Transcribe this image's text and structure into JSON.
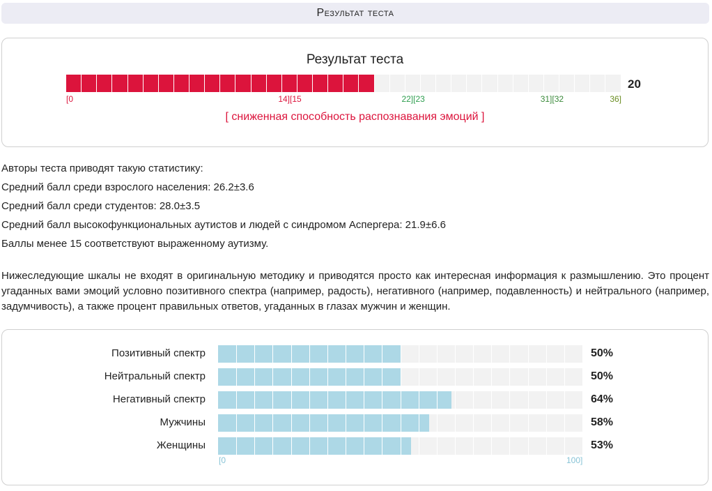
{
  "header": {
    "title": "Результат теста"
  },
  "result": {
    "title": "Результат теста",
    "score": 20,
    "max": 36,
    "score_label": "20",
    "total_segments": 36,
    "bar_color": "#dc143c",
    "ticks": [
      {
        "label": "[0",
        "value": 0,
        "color": "#dc143c"
      },
      {
        "label": "14][15",
        "value": 14.5,
        "color": "#dc143c"
      },
      {
        "label": "22][23",
        "value": 22.5,
        "color": "#2e9e4f"
      },
      {
        "label": "31][32",
        "value": 31.5,
        "color": "#3b8a3b"
      },
      {
        "label": "36]",
        "value": 36,
        "color": "#6b8e23"
      }
    ],
    "verdict": "[ сниженная способность распознавания эмоций ]"
  },
  "stats": {
    "lines": [
      "Авторы теста приводят такую статистику:",
      "Средний балл среди взрослого населения: 26.2±3.6",
      "Средний балл среди студентов: 28.0±3.5",
      "Средний балл высокофункциональных аутистов и людей с синдромом Аспергера: 21.9±6.6",
      "Баллы менее 15 соответствуют выраженному аутизму."
    ]
  },
  "info": {
    "text": "Нижеследующие шкалы не входят в оригинальную методику и приводятся просто как интересная информация к размышлению. Это процент угаданных вами эмоций условно позитивного спектра (например, радость), негативного (например, подавленность) и нейтрального (например, задумчивость), а также процент правильных ответов, угаданных в глазах мужчин и женщин."
  },
  "scales": {
    "bar_color": "#add8e6",
    "total_segments": 20,
    "axis_min": "[0",
    "axis_max": "100]",
    "items": [
      {
        "label": "Позитивный спектр",
        "value": 50,
        "pct_label": "50%"
      },
      {
        "label": "Нейтральный спектр",
        "value": 50,
        "pct_label": "50%"
      },
      {
        "label": "Негативный спектр",
        "value": 64,
        "pct_label": "64%"
      },
      {
        "label": "Мужчины",
        "value": 58,
        "pct_label": "58%"
      },
      {
        "label": "Женщины",
        "value": 53,
        "pct_label": "53%"
      }
    ]
  }
}
